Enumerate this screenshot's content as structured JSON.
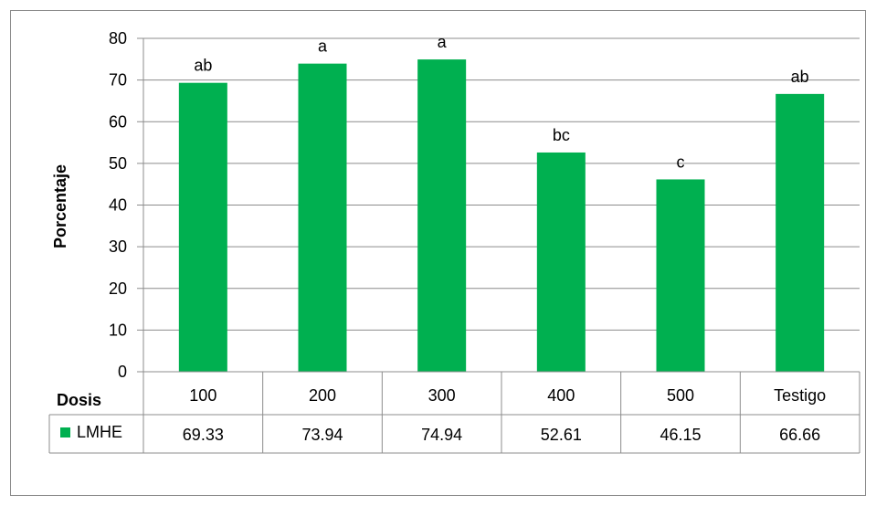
{
  "chart_data": {
    "type": "bar",
    "ylabel": "Porcentaje",
    "ylim": [
      0,
      80
    ],
    "yticks": [
      0,
      10,
      20,
      30,
      40,
      50,
      60,
      70,
      80
    ],
    "grid": true,
    "data_table": true,
    "table_row_header": "Dosis",
    "categories": [
      "100",
      "200",
      "300",
      "400",
      "500",
      "Testigo"
    ],
    "series": [
      {
        "name": "LMHE",
        "color": "#00b050",
        "values": [
          69.33,
          73.94,
          74.94,
          52.61,
          46.15,
          66.66
        ],
        "value_labels": [
          "69.33",
          "73.94",
          "74.94",
          "52.61",
          "46.15",
          "66.66"
        ],
        "annotations": [
          "ab",
          "a",
          "a",
          "bc",
          "c",
          "ab"
        ]
      }
    ]
  }
}
